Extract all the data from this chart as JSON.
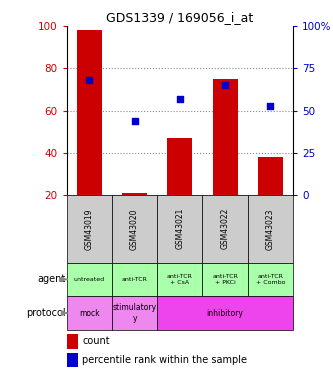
{
  "title": "GDS1339 / 169056_i_at",
  "samples": [
    "GSM43019",
    "GSM43020",
    "GSM43021",
    "GSM43022",
    "GSM43023"
  ],
  "bar_bottoms": [
    20,
    20,
    20,
    20,
    20
  ],
  "bar_tops": [
    98,
    21,
    47,
    75,
    38
  ],
  "percentile_ranks": [
    68,
    44,
    57,
    65,
    53
  ],
  "left_ylim": [
    20,
    100
  ],
  "left_yticks": [
    20,
    40,
    60,
    80,
    100
  ],
  "right_ylim": [
    0,
    100
  ],
  "right_yticks": [
    0,
    25,
    50,
    75,
    100
  ],
  "right_yticklabels": [
    "0",
    "25",
    "50",
    "75",
    "100%"
  ],
  "bar_color": "#cc0000",
  "dot_color": "#0000cc",
  "agent_labels": [
    "untreated",
    "anti-TCR",
    "anti-TCR\n+ CsA",
    "anti-TCR\n+ PKCi",
    "anti-TCR\n+ Combo"
  ],
  "grid_yticks": [
    40,
    60,
    80
  ],
  "grid_color": "#888888",
  "tick_label_color_left": "#cc0000",
  "tick_label_color_right": "#0000cc",
  "label_agent": "agent",
  "label_protocol": "protocol",
  "legend_count": "count",
  "legend_percentile": "percentile rank within the sample",
  "sample_bg_color": "#cccccc",
  "agent_bg_color": "#aaffaa",
  "protocol_mock_color": "#ee88ee",
  "protocol_stimulatory_color": "#ee88ee",
  "protocol_inhibitory_color": "#ee44ee",
  "proto_configs": [
    {
      "start": 0,
      "end": 1,
      "label": "mock"
    },
    {
      "start": 1,
      "end": 2,
      "label": "stimulatory\ny"
    },
    {
      "start": 2,
      "end": 5,
      "label": "inhibitory"
    }
  ]
}
